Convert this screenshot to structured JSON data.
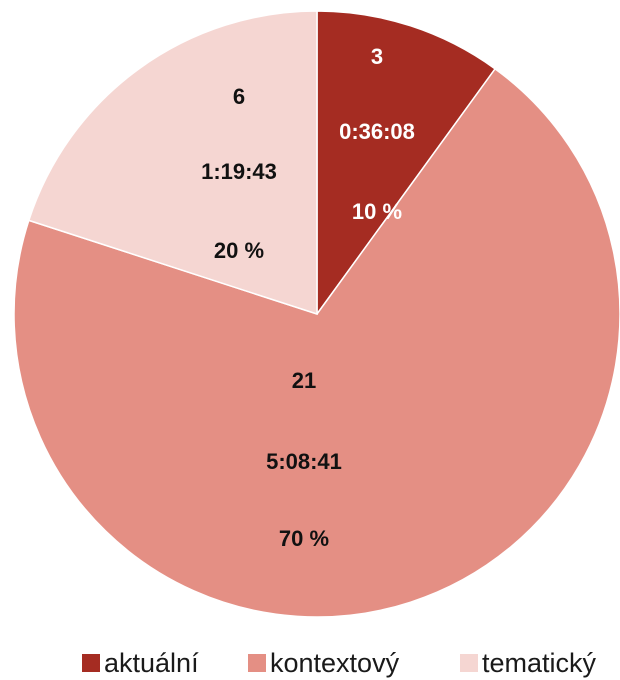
{
  "chart_data": {
    "type": "pie",
    "start": "top",
    "direction": "clockwise",
    "slices": [
      {
        "name": "aktuální",
        "count": "3",
        "duration": "0:36:08",
        "percent_label": "10 %",
        "value": 10,
        "color": "#a52c22",
        "label_color": "#ffffff"
      },
      {
        "name": "kontextový",
        "count": "21",
        "duration": "5:08:41",
        "percent_label": "70 %",
        "value": 70,
        "color": "#e48f84",
        "label_color": "#111111"
      },
      {
        "name": "tematický",
        "count": "6",
        "duration": "1:19:43",
        "percent_label": "20 %",
        "value": 20,
        "color": "#f5d6d2",
        "label_color": "#111111"
      }
    ],
    "legend": {
      "position": "bottom"
    }
  }
}
